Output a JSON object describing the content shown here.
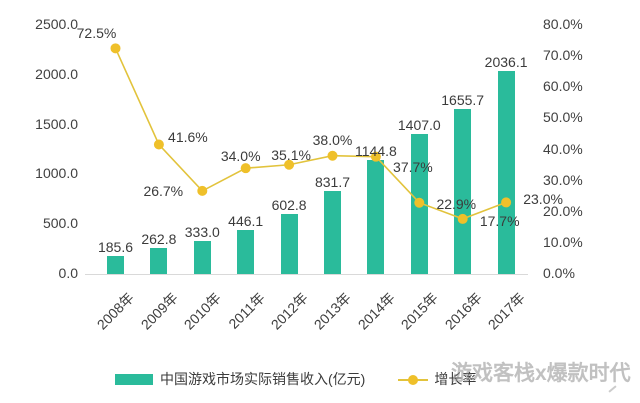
{
  "chart_data": {
    "type": "combo-bar-line",
    "title": "",
    "categories": [
      "2008年",
      "2009年",
      "2010年",
      "2011年",
      "2012年",
      "2013年",
      "2014年",
      "2015年",
      "2016年",
      "2017年"
    ],
    "series": [
      {
        "name": "中国游戏市场实际销售收入(亿元)",
        "type": "bar",
        "axis": "left",
        "values": [
          185.6,
          262.8,
          333.0,
          446.1,
          602.8,
          831.7,
          1144.8,
          1407.0,
          1655.7,
          2036.1
        ],
        "labels": [
          "185.6",
          "262.8",
          "333.0",
          "446.1",
          "602.8",
          "831.7",
          "1144.8",
          "1407.0",
          "1655.7",
          "2036.1"
        ]
      },
      {
        "name": "增长率",
        "type": "line",
        "axis": "right",
        "values": [
          72.5,
          41.6,
          26.7,
          34.0,
          35.1,
          38.0,
          37.7,
          22.9,
          17.7,
          23.0
        ],
        "labels": [
          "72.5%",
          "41.6%",
          "26.7%",
          "34.0%",
          "35.1%",
          "38.0%",
          "37.7%",
          "22.9%",
          "17.7%",
          "23.0%"
        ]
      }
    ],
    "left_axis": {
      "min": 0,
      "max": 2500,
      "tick_step": 500,
      "ticks": [
        "0.0",
        "500.0",
        "1000.0",
        "1500.0",
        "2000.0",
        "2500.0"
      ]
    },
    "right_axis": {
      "min": 0,
      "max": 80,
      "tick_step": 10,
      "ticks": [
        "0.0%",
        "10.0%",
        "20.0%",
        "30.0%",
        "40.0%",
        "50.0%",
        "60.0%",
        "70.0%",
        "80.0%"
      ]
    },
    "grid": false,
    "legend_position": "bottom"
  },
  "legend": {
    "bar_label": "中国游戏市场实际销售收入(亿元)",
    "line_label": "增长率"
  },
  "watermark": "游戏客栈x爆款时代",
  "colors": {
    "bar": "#2ABB9B",
    "line": "#E2C33C",
    "marker": "#EFC02A",
    "text": "#3B3B3B",
    "baseline": "#D9D9D9",
    "watermark": "#8F8F8F"
  }
}
